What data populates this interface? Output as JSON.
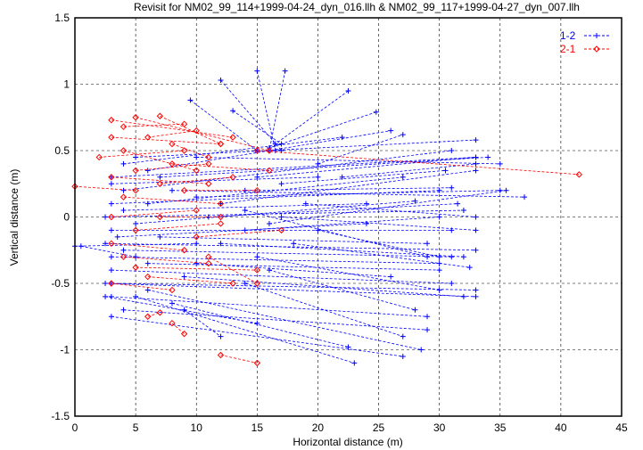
{
  "chart_data": {
    "type": "line",
    "title": "Revisit for NM02_99_114+1999-04-24_dyn_016.llh & NM02_99_117+1999-04-27_dyn_007.llh",
    "xlabel": "Horizontal distance (m)",
    "ylabel": "Vertical distance (m)",
    "xlim": [
      0,
      45
    ],
    "ylim": [
      -1.5,
      1.5
    ],
    "xticks": [
      0,
      5,
      10,
      15,
      20,
      25,
      30,
      35,
      40,
      45
    ],
    "yticks": [
      -1.5,
      -1,
      -0.5,
      0,
      0.5,
      1,
      1.5
    ],
    "ytick_labels": [
      "-1.5",
      "-1",
      "-0.5",
      "0",
      "0.5",
      "1",
      "1.5"
    ],
    "grid": true,
    "legend_position": "top-right",
    "series": [
      {
        "name": "1-2",
        "color": "#0000ff",
        "marker": "plus",
        "linestyle": "dashed",
        "segments": [
          [
            3,
            0.3,
            33,
            0.45
          ],
          [
            4,
            0.2,
            31,
            0.5
          ],
          [
            3,
            0.1,
            30,
            0.2
          ],
          [
            2.5,
            0,
            32,
            0.05
          ],
          [
            3,
            -0.1,
            31,
            -0.1
          ],
          [
            2.5,
            -0.2,
            33,
            -0.25
          ],
          [
            3,
            -0.3,
            30,
            -0.35
          ],
          [
            3,
            -0.4,
            31,
            -0.5
          ],
          [
            2.5,
            -0.5,
            33,
            -0.6
          ],
          [
            3,
            -0.6,
            29,
            -0.75
          ],
          [
            3,
            -0.75,
            27,
            -1.05
          ],
          [
            4,
            -0.7,
            29,
            -0.85
          ],
          [
            5,
            -0.6,
            23,
            -1.1
          ],
          [
            6,
            -0.55,
            28.5,
            -1
          ],
          [
            8,
            -0.65,
            22.5,
            -0.98
          ],
          [
            9,
            -0.7,
            12,
            -0.9
          ],
          [
            4,
            0.4,
            22,
            0.6
          ],
          [
            6,
            0.35,
            26,
            0.65
          ],
          [
            5,
            0.45,
            33,
            0.58
          ],
          [
            8,
            0.2,
            37,
            0.15
          ],
          [
            10,
            0.15,
            35,
            0.2
          ],
          [
            12,
            0.1,
            33,
            0.35
          ],
          [
            11,
            0,
            31.5,
            0.1
          ],
          [
            12,
            -0.2,
            32,
            -0.3
          ],
          [
            14,
            -0.1,
            30,
            0
          ],
          [
            10,
            -0.35,
            26,
            -0.45
          ],
          [
            9,
            -0.45,
            32,
            -0.6
          ],
          [
            7,
            0.3,
            34,
            0.45
          ],
          [
            6,
            0.1,
            27,
            0.3
          ],
          [
            5,
            -0.05,
            28,
            0.12
          ],
          [
            4,
            -0.25,
            31,
            -0.3
          ],
          [
            6,
            -0.35,
            30,
            -0.4
          ],
          [
            7,
            -0.15,
            29,
            -0.2
          ],
          [
            15,
            0.3,
            33,
            0.45
          ],
          [
            16,
            -0.05,
            35.5,
            0.2
          ],
          [
            17,
            0,
            33,
            -0.1
          ],
          [
            14,
            0.2,
            31,
            0.22
          ],
          [
            15,
            -0.3,
            30,
            -0.55
          ],
          [
            16,
            -0.4,
            28,
            -0.7
          ],
          [
            14,
            -0.5,
            27,
            -0.9
          ],
          [
            3,
            0.25,
            20,
            0.3
          ],
          [
            4,
            0.05,
            24,
            0.1
          ],
          [
            3.5,
            -0.15,
            24,
            -0.05
          ],
          [
            0,
            -0.22,
            10,
            -0.2
          ],
          [
            0.5,
            -0.22,
            5,
            -0.3
          ],
          [
            9.5,
            0.88,
            15,
            0.5
          ],
          [
            15,
            1.1,
            16.5,
            0.5
          ],
          [
            17.3,
            1.1,
            16,
            0.5
          ],
          [
            12,
            1.03,
            17,
            0.5
          ],
          [
            22.5,
            0.95,
            16.5,
            0.55
          ],
          [
            24.8,
            0.79,
            16,
            0.52
          ],
          [
            13,
            0.8,
            17,
            0.55
          ],
          [
            10,
            0.45,
            35,
            0.4
          ],
          [
            20,
            0.4,
            27,
            0.62
          ],
          [
            22,
            0.3,
            33,
            0.4
          ],
          [
            2.5,
            -0.6,
            15,
            -0.8
          ],
          [
            3,
            -0.5,
            33,
            -0.55
          ],
          [
            18,
            -0.2,
            32.5,
            -0.38
          ],
          [
            19,
            0.1,
            33,
            0
          ],
          [
            20,
            -0.1,
            30,
            -0.3
          ],
          [
            17,
            0.25,
            30.5,
            0.35
          ],
          [
            14,
            0.05,
            29,
            -0.3
          ]
        ]
      },
      {
        "name": "2-1",
        "color": "#ff0000",
        "marker": "diamond",
        "linestyle": "dashed",
        "segments": [
          [
            3,
            0.73,
            13,
            0.6
          ],
          [
            5,
            0.75,
            16,
            0.5
          ],
          [
            7,
            0.76,
            12,
            0.55
          ],
          [
            2,
            0.45,
            9,
            0.5
          ],
          [
            0,
            0.23,
            5,
            0.2
          ],
          [
            3,
            0.6,
            12,
            0.55
          ],
          [
            4,
            0.5,
            10,
            0.35
          ],
          [
            3,
            0.3,
            11,
            0.25
          ],
          [
            4,
            0.15,
            12,
            0.1
          ],
          [
            3,
            0,
            10,
            0.05
          ],
          [
            5,
            -0.1,
            12,
            -0.05
          ],
          [
            3,
            -0.2,
            9,
            -0.25
          ],
          [
            4,
            -0.3,
            11,
            -0.35
          ],
          [
            6,
            -0.45,
            13,
            -0.5
          ],
          [
            5,
            -0.38,
            15,
            -0.4
          ],
          [
            15,
            0.5,
            41.5,
            0.32
          ],
          [
            12,
            -1.04,
            15,
            -1.1
          ],
          [
            8,
            -0.8,
            9,
            -0.88
          ],
          [
            6,
            -0.75,
            7,
            -0.72
          ],
          [
            8,
            0.4,
            16,
            0.35
          ],
          [
            9,
            0.2,
            15,
            0.2
          ],
          [
            7,
            0,
            12,
            0
          ],
          [
            10,
            -0.15,
            17,
            -0.1
          ],
          [
            5,
            0.35,
            11,
            0.4
          ],
          [
            6,
            0.6,
            10,
            0.65
          ],
          [
            8,
            0.55,
            11,
            0.45
          ],
          [
            3,
            -0.5,
            8,
            -0.55
          ],
          [
            11,
            -0.3,
            15,
            -0.5
          ],
          [
            4,
            0.68,
            9,
            0.7
          ],
          [
            7,
            0.25,
            13,
            0.3
          ]
        ]
      }
    ]
  }
}
